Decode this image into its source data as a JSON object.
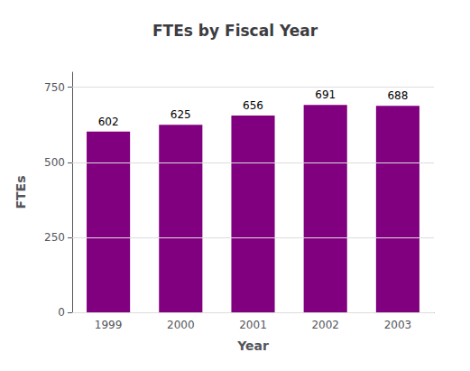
{
  "chart_data": {
    "type": "bar",
    "title": "FTEs by Fiscal Year",
    "xlabel": "Year",
    "ylabel": "FTEs",
    "categories": [
      "1999",
      "2000",
      "2001",
      "2002",
      "2003"
    ],
    "values": [
      602,
      625,
      656,
      691,
      688
    ],
    "color": "#800080",
    "ylim": [
      0,
      800
    ],
    "yticks": [
      0,
      250,
      500,
      750
    ],
    "grid": true,
    "data_labels": true
  }
}
